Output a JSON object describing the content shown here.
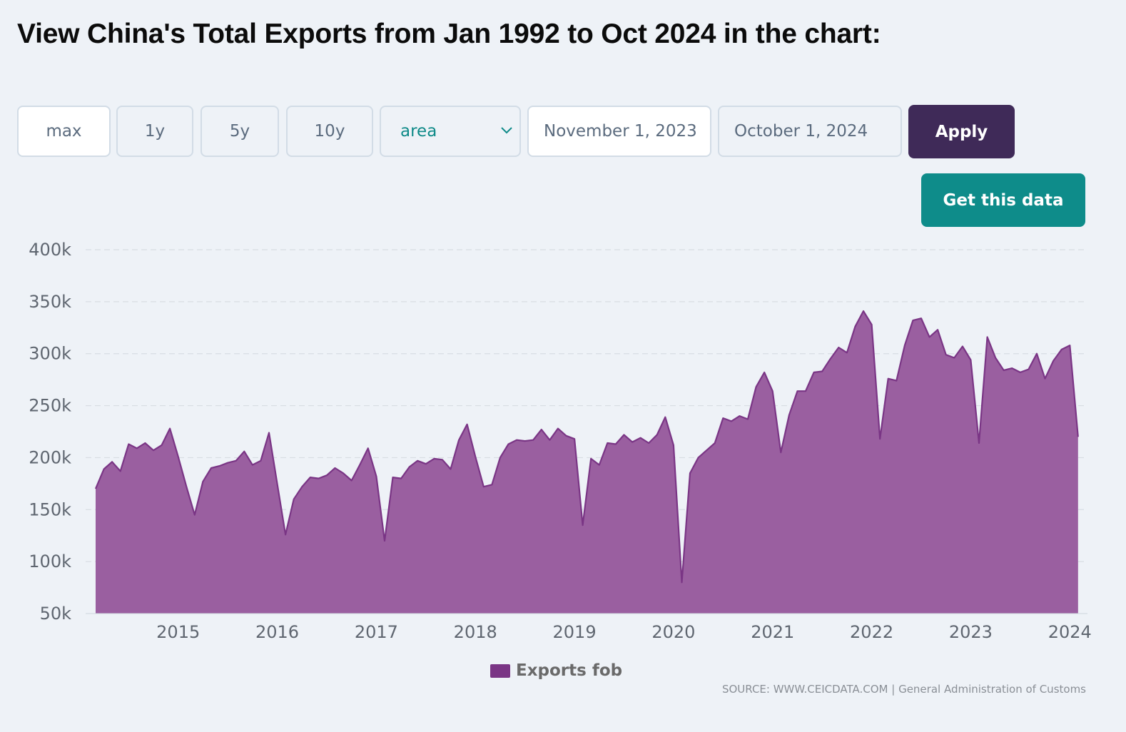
{
  "header": {
    "title": "View China's Total Exports from Jan 1992 to Oct 2024 in the chart:"
  },
  "controls": {
    "ranges": [
      "max",
      "1y",
      "5y",
      "10y"
    ],
    "chart_type": "area",
    "start_date": "November 1, 2023",
    "end_date": "October 1, 2024",
    "apply_label": "Apply",
    "get_data_label": "Get this data"
  },
  "colors": {
    "series": "#7a3585",
    "fill": "#9a5fa0",
    "apply_bg": "#3f2a58",
    "cta_bg": "#0e8c8a",
    "accent_text": "#0e8a88"
  },
  "chart_data": {
    "type": "area",
    "title": "View China's Total Exports from Jan 1992 to Oct 2024 in the chart:",
    "xlabel": "",
    "ylabel": "",
    "ylim": [
      50000,
      400000
    ],
    "y_ticks": [
      50000,
      100000,
      150000,
      200000,
      250000,
      300000,
      350000,
      400000
    ],
    "y_tick_labels": [
      "50k",
      "100k",
      "150k",
      "200k",
      "250k",
      "300k",
      "350k",
      "400k"
    ],
    "x_ticks": [
      2015,
      2016,
      2017,
      2018,
      2019,
      2020,
      2021,
      2022,
      2023,
      2024
    ],
    "x_tick_labels": [
      "2015",
      "2016",
      "2017",
      "2018",
      "2019",
      "2020",
      "2021",
      "2022",
      "2023",
      "2024"
    ],
    "grid": true,
    "legend_position": "bottom-center",
    "series": [
      {
        "name": "Exports fob",
        "start": "2014-03",
        "frequency": "monthly",
        "values": [
          170000,
          189000,
          196000,
          187000,
          213000,
          209000,
          214000,
          207000,
          212000,
          228000,
          201000,
          172000,
          145000,
          177000,
          190000,
          192000,
          195000,
          197000,
          206000,
          193000,
          197000,
          224000,
          175000,
          126000,
          160000,
          172000,
          181000,
          180000,
          183000,
          190000,
          185000,
          178000,
          193000,
          209000,
          182000,
          120000,
          181000,
          180000,
          191000,
          197000,
          194000,
          199000,
          198000,
          189000,
          217000,
          232000,
          201000,
          172000,
          174000,
          200000,
          213000,
          217000,
          216000,
          217000,
          227000,
          217000,
          228000,
          221000,
          218000,
          135000,
          199000,
          193000,
          214000,
          213000,
          222000,
          215000,
          219000,
          214000,
          222000,
          239000,
          212000,
          80000,
          185000,
          200000,
          207000,
          214000,
          238000,
          235000,
          240000,
          237000,
          268000,
          282000,
          264000,
          205000,
          241000,
          264000,
          264000,
          282000,
          283000,
          295000,
          306000,
          301000,
          326000,
          341000,
          328000,
          218000,
          276000,
          274000,
          308000,
          332000,
          334000,
          316000,
          323000,
          299000,
          296000,
          307000,
          294000,
          214000,
          316000,
          296000,
          284000,
          286000,
          282000,
          285000,
          300000,
          276000,
          293000,
          304000,
          308000,
          220000
        ]
      }
    ],
    "source": "SOURCE: WWW.CEICDATA.COM | General Administration of Customs"
  }
}
